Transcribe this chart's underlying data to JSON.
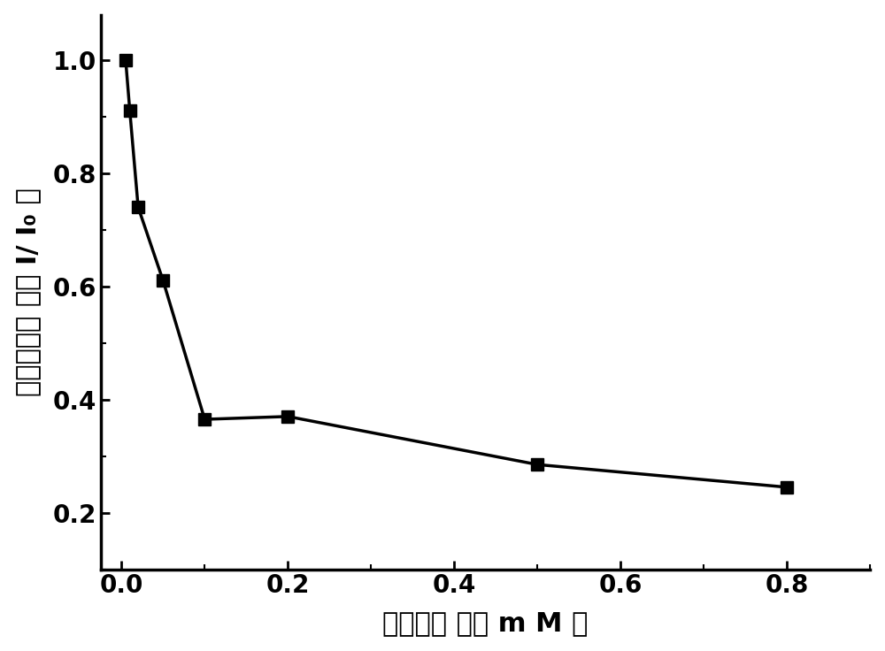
{
  "x_data": [
    0.005,
    0.01,
    0.02,
    0.05,
    0.1,
    0.2,
    0.5,
    0.8
  ],
  "y_data": [
    1.0,
    0.91,
    0.74,
    0.61,
    0.365,
    0.37,
    0.285,
    0.245
  ],
  "xlabel": "葫葡糖浓 度（ m M ）",
  "ylabel": "荧光强度比 値（ I/ I₀ ）",
  "xlim": [
    -0.025,
    0.9
  ],
  "ylim": [
    0.1,
    1.08
  ],
  "xticks": [
    0.0,
    0.2,
    0.4,
    0.6,
    0.8
  ],
  "yticks": [
    0.2,
    0.4,
    0.6,
    0.8,
    1.0
  ],
  "line_color": "#000000",
  "marker_color": "#000000",
  "marker": "s",
  "marker_size": 10,
  "line_width": 2.5,
  "background_color": "#ffffff",
  "xlabel_fontsize": 22,
  "ylabel_fontsize": 22,
  "tick_fontsize": 20,
  "tick_label_weight": "bold"
}
